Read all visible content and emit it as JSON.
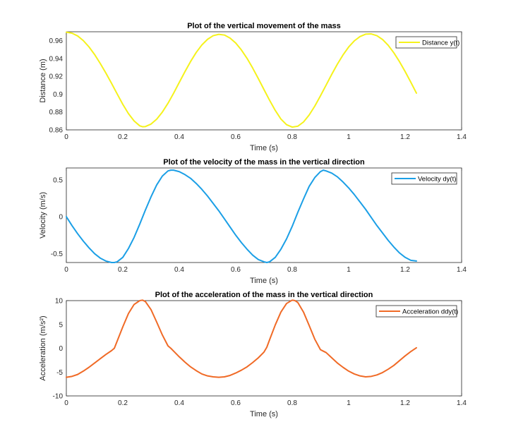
{
  "chart_data": [
    {
      "type": "line",
      "title": "Plot of the vertical movement of the mass",
      "xlabel": "Time (s)",
      "ylabel": "Distance (m)",
      "xlim": [
        0,
        1.4
      ],
      "ylim": [
        0.86,
        0.97
      ],
      "xticks": [
        "0",
        "0.2",
        "0.4",
        "0.6",
        "0.8",
        "1",
        "1.2",
        "1.4"
      ],
      "yticks": [
        "0.86",
        "0.88",
        "0.9",
        "0.92",
        "0.94",
        "0.96"
      ],
      "grid": true,
      "legend_position": "top-right",
      "series": [
        {
          "name": "Distance y(t)",
          "color": "#f5f21b",
          "x": [
            0,
            0.02,
            0.04,
            0.06,
            0.08,
            0.1,
            0.12,
            0.14,
            0.16,
            0.18,
            0.2,
            0.22,
            0.24,
            0.26,
            0.27,
            0.28,
            0.3,
            0.32,
            0.34,
            0.36,
            0.38,
            0.4,
            0.42,
            0.44,
            0.46,
            0.48,
            0.5,
            0.52,
            0.54,
            0.56,
            0.58,
            0.6,
            0.62,
            0.64,
            0.66,
            0.68,
            0.7,
            0.72,
            0.74,
            0.76,
            0.78,
            0.8,
            0.82,
            0.84,
            0.86,
            0.88,
            0.9,
            0.92,
            0.94,
            0.96,
            0.98,
            1.0,
            1.02,
            1.04,
            1.06,
            1.08,
            1.1,
            1.12,
            1.14,
            1.16,
            1.18,
            1.2,
            1.22,
            1.24
          ],
          "values": [
            0.9695,
            0.9684,
            0.9653,
            0.9601,
            0.9531,
            0.9445,
            0.9345,
            0.9237,
            0.9122,
            0.9003,
            0.8886,
            0.8782,
            0.87,
            0.8645,
            0.8635,
            0.8637,
            0.8665,
            0.872,
            0.8799,
            0.8898,
            0.9011,
            0.9132,
            0.9252,
            0.9366,
            0.9468,
            0.9552,
            0.9615,
            0.9656,
            0.9671,
            0.9663,
            0.9629,
            0.9573,
            0.9496,
            0.9402,
            0.9293,
            0.9175,
            0.9052,
            0.8931,
            0.8818,
            0.8721,
            0.8658,
            0.8631,
            0.8641,
            0.8688,
            0.8766,
            0.8866,
            0.8981,
            0.9101,
            0.9222,
            0.9337,
            0.944,
            0.9529,
            0.9598,
            0.9646,
            0.9673,
            0.9676,
            0.9656,
            0.9613,
            0.9548,
            0.9464,
            0.9365,
            0.9254,
            0.9135,
            0.9012
          ]
        }
      ]
    },
    {
      "type": "line",
      "title": "Plot of the velocity of the mass in the vertical direction",
      "xlabel": "Time (s)",
      "ylabel": "Velocity (m/s)",
      "xlim": [
        0,
        1.4
      ],
      "ylim": [
        -0.62,
        0.66
      ],
      "xticks": [
        "0",
        "0.2",
        "0.4",
        "0.6",
        "0.8",
        "1",
        "1.2",
        "1.4"
      ],
      "yticks": [
        "-0.5",
        "0",
        "0.5"
      ],
      "grid": true,
      "legend_position": "top-right",
      "series": [
        {
          "name": "Velocity dy(t)",
          "color": "#1b9fe6",
          "x": [
            0,
            0.02,
            0.04,
            0.06,
            0.08,
            0.1,
            0.12,
            0.14,
            0.16,
            0.17,
            0.18,
            0.2,
            0.22,
            0.24,
            0.26,
            0.28,
            0.3,
            0.32,
            0.34,
            0.36,
            0.37,
            0.38,
            0.4,
            0.42,
            0.44,
            0.46,
            0.48,
            0.5,
            0.52,
            0.54,
            0.56,
            0.58,
            0.6,
            0.62,
            0.64,
            0.66,
            0.68,
            0.7,
            0.71,
            0.72,
            0.74,
            0.76,
            0.78,
            0.8,
            0.82,
            0.84,
            0.86,
            0.88,
            0.9,
            0.91,
            0.92,
            0.94,
            0.96,
            0.98,
            1.0,
            1.02,
            1.04,
            1.06,
            1.08,
            1.1,
            1.12,
            1.14,
            1.16,
            1.18,
            1.2,
            1.22,
            1.24
          ],
          "values": [
            0,
            -0.12,
            -0.23,
            -0.33,
            -0.42,
            -0.5,
            -0.56,
            -0.6,
            -0.62,
            -0.62,
            -0.61,
            -0.55,
            -0.43,
            -0.28,
            -0.1,
            0.09,
            0.27,
            0.43,
            0.55,
            0.62,
            0.63,
            0.63,
            0.61,
            0.57,
            0.52,
            0.45,
            0.37,
            0.28,
            0.18,
            0.08,
            -0.03,
            -0.14,
            -0.25,
            -0.35,
            -0.44,
            -0.52,
            -0.58,
            -0.61,
            -0.62,
            -0.61,
            -0.55,
            -0.44,
            -0.3,
            -0.13,
            0.06,
            0.24,
            0.41,
            0.53,
            0.61,
            0.63,
            0.62,
            0.59,
            0.54,
            0.47,
            0.39,
            0.3,
            0.2,
            0.1,
            -0.01,
            -0.12,
            -0.22,
            -0.32,
            -0.41,
            -0.49,
            -0.55,
            -0.59,
            -0.6
          ]
        }
      ]
    },
    {
      "type": "line",
      "title": "Plot of the acceleration of the mass in the vertical direction",
      "xlabel": "Time (s)",
      "ylabel": "Acceleration (m/s²)",
      "xlim": [
        0,
        1.4
      ],
      "ylim": [
        -10,
        10
      ],
      "xticks": [
        "0",
        "0.2",
        "0.4",
        "0.6",
        "0.8",
        "1",
        "1.2",
        "1.4"
      ],
      "yticks": [
        "-10",
        "-5",
        "0",
        "5",
        "10"
      ],
      "grid": true,
      "legend_position": "top-right",
      "series": [
        {
          "name": "Acceleration ddy(t)",
          "color": "#f06a26",
          "x": [
            0,
            0.02,
            0.04,
            0.06,
            0.08,
            0.1,
            0.12,
            0.14,
            0.16,
            0.17,
            0.18,
            0.2,
            0.22,
            0.24,
            0.26,
            0.27,
            0.28,
            0.3,
            0.32,
            0.34,
            0.36,
            0.37,
            0.38,
            0.4,
            0.42,
            0.44,
            0.46,
            0.48,
            0.5,
            0.52,
            0.54,
            0.56,
            0.58,
            0.6,
            0.62,
            0.64,
            0.66,
            0.68,
            0.7,
            0.71,
            0.72,
            0.74,
            0.76,
            0.78,
            0.8,
            0.81,
            0.82,
            0.84,
            0.86,
            0.88,
            0.9,
            0.91,
            0.92,
            0.94,
            0.96,
            0.98,
            1.0,
            1.02,
            1.04,
            1.06,
            1.08,
            1.1,
            1.12,
            1.14,
            1.16,
            1.18,
            1.2,
            1.22,
            1.24
          ],
          "values": [
            -6.1,
            -5.9,
            -5.5,
            -4.8,
            -4.0,
            -3.1,
            -2.2,
            -1.3,
            -0.5,
            0,
            1.5,
            4.5,
            7.3,
            9.2,
            10.0,
            10.1,
            9.8,
            8.1,
            5.5,
            2.8,
            0.5,
            0,
            -0.6,
            -1.8,
            -2.9,
            -3.9,
            -4.7,
            -5.4,
            -5.8,
            -6.0,
            -6.1,
            -6.0,
            -5.7,
            -5.2,
            -4.6,
            -3.9,
            -3.0,
            -2.0,
            -0.8,
            0.2,
            1.8,
            4.9,
            7.6,
            9.4,
            10.1,
            10.0,
            9.6,
            7.6,
            4.8,
            1.9,
            -0.3,
            -0.6,
            -0.9,
            -2.0,
            -3.1,
            -4.0,
            -4.8,
            -5.4,
            -5.8,
            -6.0,
            -5.9,
            -5.6,
            -5.1,
            -4.4,
            -3.6,
            -2.6,
            -1.6,
            -0.7,
            0.1
          ]
        }
      ]
    }
  ]
}
